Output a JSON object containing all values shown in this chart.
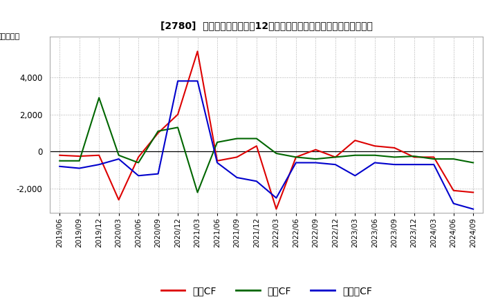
{
  "title": "[2780]  キャッシュフローの12か月移動合計の対前年同期増減額の推移",
  "ylabel": "（百万円）",
  "legend_labels": [
    "営業CF",
    "投資CF",
    "フリーCF"
  ],
  "line_colors": [
    "#dd0000",
    "#006600",
    "#0000cc"
  ],
  "x_labels": [
    "2019/06",
    "2019/09",
    "2019/12",
    "2020/03",
    "2020/06",
    "2020/09",
    "2020/12",
    "2021/03",
    "2021/06",
    "2021/09",
    "2021/12",
    "2022/03",
    "2022/06",
    "2022/09",
    "2022/12",
    "2023/03",
    "2023/06",
    "2023/09",
    "2023/12",
    "2024/03",
    "2024/06",
    "2024/09"
  ],
  "operating_cf": [
    -200,
    -250,
    -200,
    -2600,
    -300,
    1000,
    2000,
    5400,
    -500,
    -300,
    300,
    -3100,
    -300,
    100,
    -300,
    600,
    300,
    200,
    -300,
    -300,
    -2100,
    -2200
  ],
  "investing_cf": [
    -500,
    -500,
    2900,
    -200,
    -600,
    1100,
    1300,
    -2200,
    500,
    700,
    700,
    -100,
    -300,
    -400,
    -300,
    -200,
    -200,
    -300,
    -250,
    -400,
    -400,
    -600
  ],
  "free_cf": [
    -800,
    -900,
    -700,
    -400,
    -1300,
    -1200,
    3800,
    3800,
    -600,
    -1400,
    -1600,
    -2500,
    -600,
    -600,
    -700,
    -1300,
    -600,
    -700,
    -700,
    -700,
    -2800,
    -3100
  ],
  "ylim": [
    -3300,
    6200
  ],
  "yticks": [
    -2000,
    0,
    2000,
    4000
  ],
  "background_color": "#ffffff",
  "grid_color": "#aaaaaa",
  "grid_style": ":"
}
